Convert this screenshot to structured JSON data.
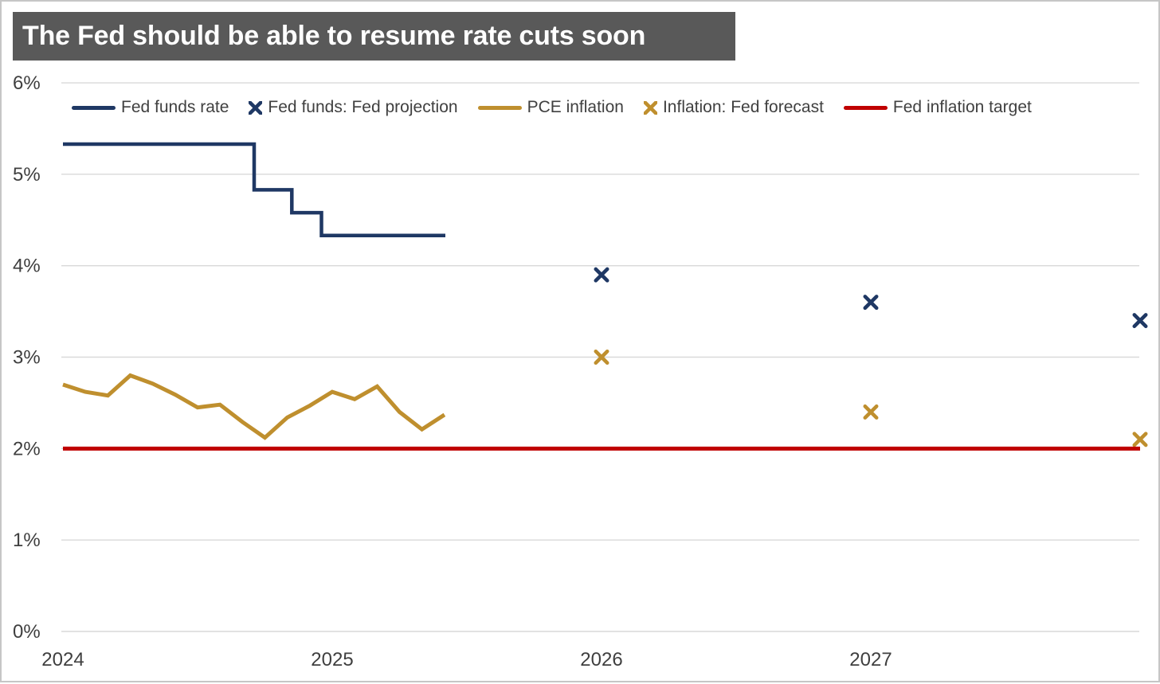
{
  "page": {
    "title": "The Fed should be able to resume rate cuts soon"
  },
  "colors": {
    "title_bg": "#595959",
    "title_text": "#ffffff",
    "axis_text": "#3f3f3f",
    "legend_text": "#404040",
    "gridline": "#d9d9d9",
    "navy": "#1f3864",
    "gold": "#bf8f2e",
    "red": "#c00000",
    "border": "#c6c6c6"
  },
  "chart_data": {
    "type": "line",
    "title": "The Fed should be able to resume rate cuts soon",
    "xlabel": "",
    "ylabel": "",
    "xlim": [
      2024,
      2028.1
    ],
    "ylim": [
      0,
      6
    ],
    "grid": "horizontal",
    "legend_position": "top-inside",
    "y_ticks": [
      {
        "value": 0,
        "label": "0%"
      },
      {
        "value": 1,
        "label": "1%"
      },
      {
        "value": 2,
        "label": "2%"
      },
      {
        "value": 3,
        "label": "3%"
      },
      {
        "value": 4,
        "label": "4%"
      },
      {
        "value": 5,
        "label": "5%"
      },
      {
        "value": 6,
        "label": "6%"
      }
    ],
    "x_ticks": [
      {
        "value": 2024,
        "label": "2024"
      },
      {
        "value": 2025,
        "label": "2025"
      },
      {
        "value": 2026,
        "label": "2026"
      },
      {
        "value": 2027,
        "label": "2027"
      }
    ],
    "series": [
      {
        "name": "Fed funds rate",
        "type": "step-line",
        "color_key": "navy",
        "unit": "%",
        "points": [
          [
            2024.0,
            5.33
          ],
          [
            2024.71,
            5.33
          ],
          [
            2024.71,
            4.83
          ],
          [
            2024.85,
            4.83
          ],
          [
            2024.85,
            4.58
          ],
          [
            2024.96,
            4.58
          ],
          [
            2024.96,
            4.33
          ],
          [
            2025.42,
            4.33
          ]
        ]
      },
      {
        "name": "Fed funds: Fed projection",
        "type": "scatter-x",
        "color_key": "navy",
        "unit": "%",
        "points": [
          [
            2026.0,
            3.9
          ],
          [
            2027.0,
            3.6
          ],
          [
            2028.0,
            3.4
          ]
        ]
      },
      {
        "name": "PCE inflation",
        "type": "line",
        "color_key": "gold",
        "unit": "%",
        "points": [
          [
            2024.0,
            2.7
          ],
          [
            2024.083,
            2.62
          ],
          [
            2024.167,
            2.58
          ],
          [
            2024.25,
            2.8
          ],
          [
            2024.333,
            2.71
          ],
          [
            2024.417,
            2.59
          ],
          [
            2024.5,
            2.45
          ],
          [
            2024.583,
            2.48
          ],
          [
            2024.667,
            2.29
          ],
          [
            2024.75,
            2.12
          ],
          [
            2024.833,
            2.34
          ],
          [
            2024.917,
            2.47
          ],
          [
            2025.0,
            2.62
          ],
          [
            2025.083,
            2.54
          ],
          [
            2025.167,
            2.68
          ],
          [
            2025.25,
            2.4
          ],
          [
            2025.333,
            2.21
          ],
          [
            2025.417,
            2.37
          ]
        ]
      },
      {
        "name": "Inflation: Fed forecast",
        "type": "scatter-x",
        "color_key": "gold",
        "unit": "%",
        "points": [
          [
            2026.0,
            3.0
          ],
          [
            2027.0,
            2.4
          ],
          [
            2028.0,
            2.1
          ]
        ]
      },
      {
        "name": "Fed inflation target",
        "type": "hline",
        "color_key": "red",
        "unit": "%",
        "value": 2.0,
        "x_range": [
          2024.0,
          2028.0
        ]
      }
    ]
  }
}
